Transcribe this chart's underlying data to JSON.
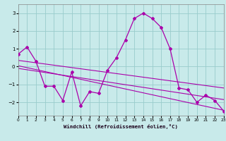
{
  "xlabel": "Windchill (Refroidissement éolien,°C)",
  "bg_color": "#c8eaea",
  "grid_color": "#99cccc",
  "line_color": "#aa00aa",
  "xlim": [
    0,
    23
  ],
  "ylim": [
    -2.75,
    3.5
  ],
  "yticks": [
    -2,
    -1,
    0,
    1,
    2,
    3
  ],
  "xticks": [
    0,
    1,
    2,
    3,
    4,
    5,
    6,
    7,
    8,
    9,
    10,
    11,
    12,
    13,
    14,
    15,
    16,
    17,
    18,
    19,
    20,
    21,
    22,
    23
  ],
  "data_x": [
    0,
    1,
    2,
    3,
    4,
    5,
    6,
    7,
    8,
    9,
    10,
    11,
    12,
    13,
    14,
    15,
    16,
    17,
    18,
    19,
    20,
    21,
    22,
    23
  ],
  "line1_y": [
    0.7,
    1.1,
    0.3,
    -1.1,
    -1.1,
    -1.9,
    -0.3,
    -2.2,
    -1.4,
    -1.5,
    -0.2,
    0.5,
    1.5,
    2.7,
    3.0,
    2.7,
    2.2,
    1.0,
    -1.2,
    -1.3,
    -2.0,
    -1.6,
    -1.9,
    -2.5
  ],
  "trend1_x": [
    0,
    23
  ],
  "trend1_y": [
    0.35,
    -1.2
  ],
  "trend2_x": [
    0,
    23
  ],
  "trend2_y": [
    0.05,
    -2.45
  ],
  "trend3_x": [
    0,
    23
  ],
  "trend3_y": [
    -0.1,
    -1.85
  ]
}
